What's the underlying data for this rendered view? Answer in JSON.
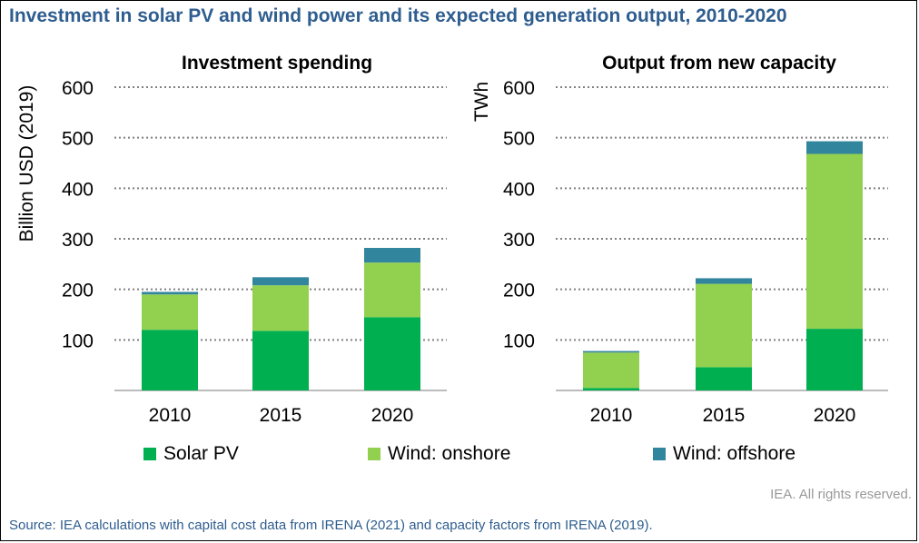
{
  "title": "Investment in solar PV and wind power and its expected generation output, 2010-2020",
  "copyright": "IEA. All rights reserved.",
  "source": "Source: IEA calculations with capital cost data from IRENA (2021) and capacity factors from IRENA (2019).",
  "colors": {
    "solar": "#00b050",
    "onshore": "#92d050",
    "offshore": "#31859c"
  },
  "legend": [
    {
      "name": "Solar PV",
      "color_key": "solar"
    },
    {
      "name": "Wind: onshore",
      "color_key": "onshore"
    },
    {
      "name": "Wind: offshore",
      "color_key": "offshore"
    }
  ],
  "chart_data": [
    {
      "type": "bar",
      "stacked": true,
      "title": "Investment spending",
      "ylabel": "Billion USD (2019)",
      "xlabel": "",
      "ylim": [
        0,
        600
      ],
      "yticks": [
        100,
        200,
        300,
        400,
        500,
        600
      ],
      "grid": true,
      "categories": [
        "2010",
        "2015",
        "2020"
      ],
      "series": [
        {
          "name": "Solar PV",
          "values": [
            120,
            118,
            145
          ]
        },
        {
          "name": "Wind: onshore",
          "values": [
            70,
            90,
            108
          ]
        },
        {
          "name": "Wind: offshore",
          "values": [
            5,
            16,
            29
          ]
        }
      ]
    },
    {
      "type": "bar",
      "stacked": true,
      "title": "Output from new capacity",
      "ylabel": "TWh",
      "xlabel": "",
      "ylim": [
        0,
        600
      ],
      "yticks": [
        100,
        200,
        300,
        400,
        500,
        600
      ],
      "grid": true,
      "categories": [
        "2010",
        "2015",
        "2020"
      ],
      "series": [
        {
          "name": "Solar PV",
          "values": [
            5,
            46,
            122
          ]
        },
        {
          "name": "Wind: onshore",
          "values": [
            70,
            165,
            346
          ]
        },
        {
          "name": "Wind: offshore",
          "values": [
            3,
            11,
            25
          ]
        }
      ]
    }
  ]
}
